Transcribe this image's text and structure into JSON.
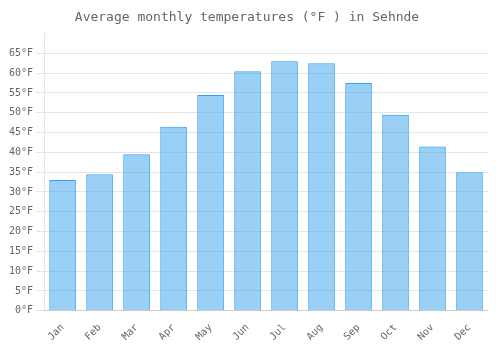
{
  "chart_data": {
    "type": "bar",
    "title": "Average monthly temperatures (°F ) in Sehnde",
    "categories": [
      "Jan",
      "Feb",
      "Mar",
      "Apr",
      "May",
      "Jun",
      "Jul",
      "Aug",
      "Sep",
      "Oct",
      "Nov",
      "Dec"
    ],
    "values": [
      33,
      34.5,
      39.5,
      46.5,
      54.5,
      60.5,
      63,
      62.5,
      57.5,
      49.5,
      41.5,
      35
    ],
    "ylim": [
      0,
      70
    ],
    "yticks": [
      {
        "value": 0,
        "label": "0°F"
      },
      {
        "value": 5,
        "label": "5°F"
      },
      {
        "value": 10,
        "label": "10°F"
      },
      {
        "value": 15,
        "label": "15°F"
      },
      {
        "value": 20,
        "label": "20°F"
      },
      {
        "value": 25,
        "label": "25°F"
      },
      {
        "value": 30,
        "label": "30°F"
      },
      {
        "value": 35,
        "label": "35°F"
      },
      {
        "value": 40,
        "label": "40°F"
      },
      {
        "value": 45,
        "label": "45°F"
      },
      {
        "value": 50,
        "label": "50°F"
      },
      {
        "value": 55,
        "label": "55°F"
      },
      {
        "value": 60,
        "label": "60°F"
      },
      {
        "value": 65,
        "label": "65°F"
      }
    ],
    "grid": true
  }
}
